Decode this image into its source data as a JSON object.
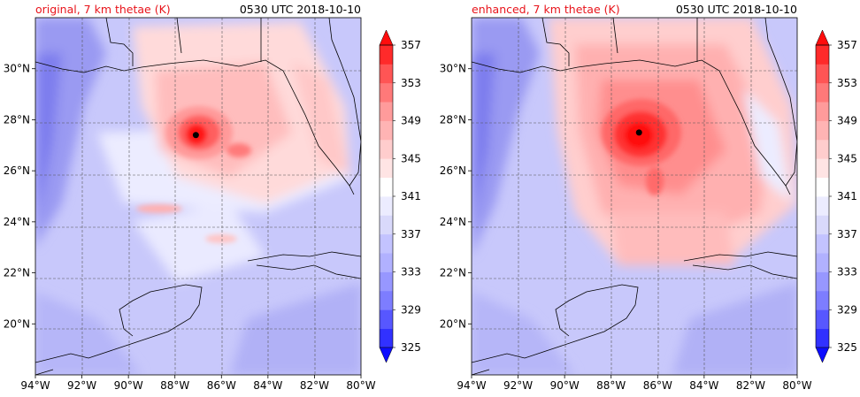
{
  "panels": [
    {
      "id": "original",
      "title": "original, 7 km thetae (K)",
      "time": "0530 UTC 2018-10-10",
      "center_lon": -87.1,
      "center_lat": 27.4
    },
    {
      "id": "enhanced",
      "title": "enhanced, 7 km thetae (K)",
      "time": "0530 UTC 2018-10-10",
      "center_lon": -86.8,
      "center_lat": 27.5
    }
  ],
  "map": {
    "lon_range": [
      -94,
      -80
    ],
    "lat_range": [
      18,
      32
    ],
    "lon_ticks": [
      "94°W",
      "92°W",
      "90°W",
      "88°W",
      "86°W",
      "84°W",
      "82°W",
      "80°W"
    ],
    "lat_ticks": [
      "30°N",
      "28°N",
      "26°N",
      "24°N",
      "22°N",
      "20°N"
    ],
    "gridlines": "dashed"
  },
  "colorbar": {
    "labels": [
      "357",
      "353",
      "349",
      "345",
      "341",
      "337",
      "333",
      "329",
      "325"
    ],
    "levels": [
      325,
      327,
      329,
      331,
      333,
      335,
      337,
      339,
      341,
      343,
      345,
      347,
      349,
      351,
      353,
      355,
      357,
      359
    ],
    "colors": [
      "#0c0cff",
      "#3131ff",
      "#5757ff",
      "#7d7dff",
      "#9797ff",
      "#b1b1ff",
      "#c3c3ff",
      "#d9d9fb",
      "#ececff",
      "#ffffff",
      "#ffe4e4",
      "#ffcdcd",
      "#ffb4b4",
      "#ff9b9b",
      "#ff7979",
      "#ff5555",
      "#ff2a2a",
      "#ff0d0d"
    ]
  }
}
